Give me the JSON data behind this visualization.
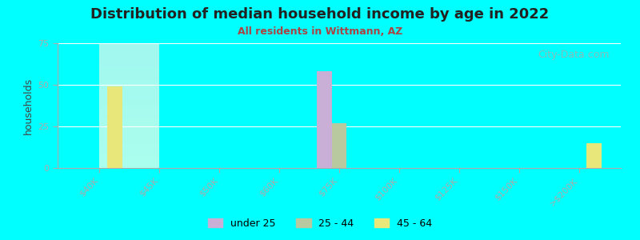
{
  "title": "Distribution of median household income by age in 2022",
  "subtitle": "All residents in Wittmann, AZ",
  "xlabel": "",
  "ylabel": "households",
  "background_color": "#00FFFF",
  "plot_bg_gradient_top": "#e8f5e8",
  "plot_bg_gradient_bottom": "#f5ffe8",
  "categories": [
    "$40K",
    "$45K",
    "$50K",
    "$60K",
    "$75K",
    "$100K",
    "$125K",
    "$150K",
    ">$200K"
  ],
  "series": {
    "under 25": {
      "color": "#c9aed6",
      "values": [
        0,
        0,
        0,
        0,
        58,
        0,
        0,
        0,
        0
      ]
    },
    "25 - 44": {
      "color": "#b8c9a0",
      "values": [
        0,
        0,
        0,
        0,
        27,
        0,
        0,
        0,
        0
      ]
    },
    "45 - 64": {
      "color": "#e8e87a",
      "values": [
        49,
        0,
        0,
        0,
        0,
        0,
        0,
        0,
        15
      ]
    }
  },
  "ylim": [
    0,
    75
  ],
  "yticks": [
    0,
    25,
    50,
    75
  ],
  "bar_width": 0.25,
  "watermark": "City-Data.com",
  "legend_marker_colors": [
    "#c9aed6",
    "#b8c9a0",
    "#e8e87a"
  ],
  "legend_labels": [
    "under 25",
    "25 - 44",
    "45 - 64"
  ]
}
